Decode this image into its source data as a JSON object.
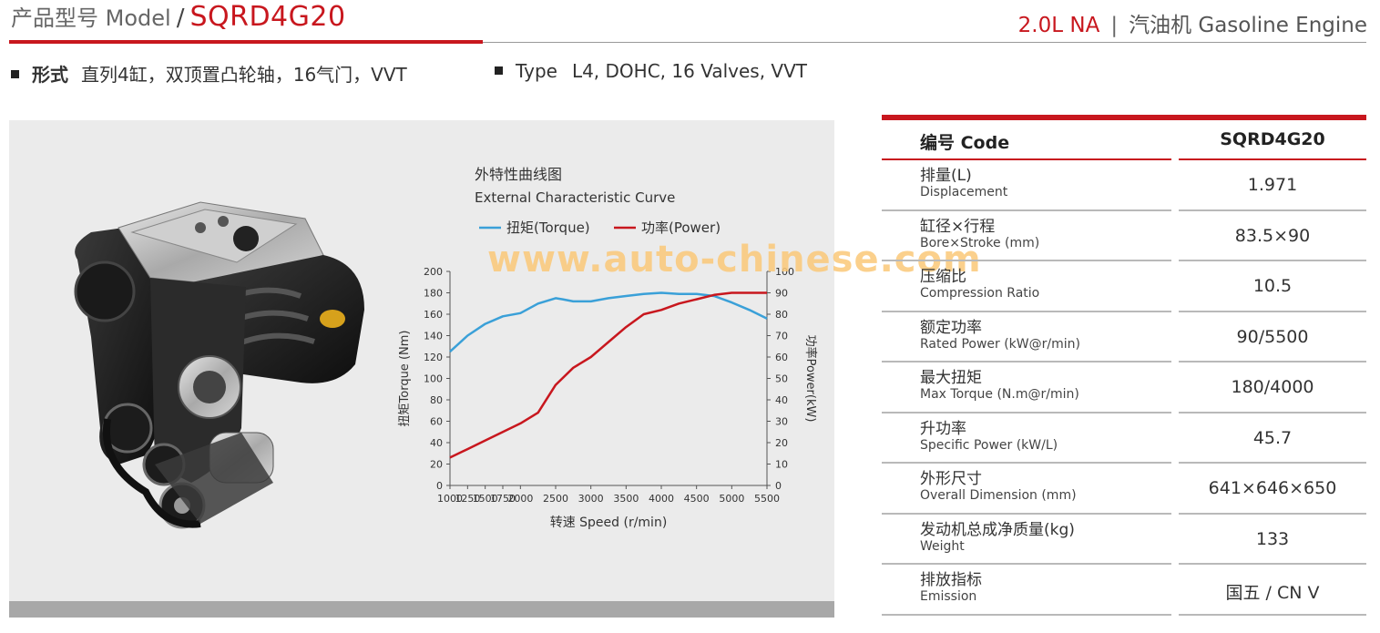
{
  "header": {
    "label": "产品型号 Model",
    "separator": "/",
    "model": "SQRD4G20",
    "displacement": "2.0L NA",
    "divider": "|",
    "engine_type": "汽油机 Gasoline Engine"
  },
  "bullets": {
    "zh_label": "形式",
    "zh_value": "直列4缸，双顶置凸轮轴，16气门，VVT",
    "en_label": "Type",
    "en_value": "L4, DOHC, 16 Valves, VVT"
  },
  "watermark": "www.auto-chinese.com",
  "chart_data": {
    "type": "line",
    "title": "外特性曲线图",
    "subtitle": "External Characteristic Curve",
    "xlabel": "转速 Speed (r/min)",
    "ylabel_left": "扭矩Torque (Nm)",
    "ylabel_right": "功率Power(kW)",
    "x": [
      1000,
      1250,
      1500,
      1750,
      2000,
      2250,
      2500,
      2750,
      3000,
      3250,
      3500,
      3750,
      4000,
      4250,
      4500,
      4750,
      5000,
      5250,
      5500
    ],
    "x_ticks": [
      "1000",
      "1250",
      "1500",
      "1750",
      "2000",
      "2500",
      "3000",
      "3500",
      "4000",
      "4500",
      "5000",
      "5500"
    ],
    "xlim": [
      1000,
      5500
    ],
    "ylim_left": [
      0,
      200
    ],
    "ylim_right": [
      0,
      100
    ],
    "y_ticks_left": [
      "0",
      "20",
      "40",
      "60",
      "80",
      "100",
      "120",
      "140",
      "160",
      "180",
      "200"
    ],
    "y_ticks_right": [
      "0",
      "10",
      "20",
      "30",
      "40",
      "50",
      "60",
      "70",
      "80",
      "90",
      "100"
    ],
    "series": [
      {
        "name": "扭矩(Torque)",
        "axis": "left",
        "color": "#3aa0d8",
        "points": [
          [
            1000,
            125
          ],
          [
            1250,
            140
          ],
          [
            1500,
            151
          ],
          [
            1750,
            158
          ],
          [
            2000,
            161
          ],
          [
            2250,
            170
          ],
          [
            2500,
            175
          ],
          [
            2600,
            174
          ],
          [
            2750,
            172
          ],
          [
            3000,
            172
          ],
          [
            3250,
            175
          ],
          [
            3500,
            177
          ],
          [
            3750,
            179
          ],
          [
            4000,
            180
          ],
          [
            4250,
            179
          ],
          [
            4500,
            179
          ],
          [
            4750,
            177
          ],
          [
            5000,
            171
          ],
          [
            5250,
            164
          ],
          [
            5500,
            156
          ]
        ]
      },
      {
        "name": "功率(Power)",
        "axis": "right",
        "color": "#c8171e",
        "points": [
          [
            1000,
            13
          ],
          [
            1250,
            17
          ],
          [
            1500,
            21
          ],
          [
            1750,
            25
          ],
          [
            2000,
            29
          ],
          [
            2250,
            34
          ],
          [
            2500,
            47
          ],
          [
            2750,
            55
          ],
          [
            3000,
            60
          ],
          [
            3250,
            67
          ],
          [
            3500,
            74
          ],
          [
            3750,
            80
          ],
          [
            4000,
            82
          ],
          [
            4250,
            85
          ],
          [
            4500,
            87
          ],
          [
            4750,
            89
          ],
          [
            5000,
            90
          ],
          [
            5250,
            90
          ],
          [
            5500,
            90
          ]
        ]
      }
    ]
  },
  "specs": {
    "code_label": "编号  Code",
    "code_value": "SQRD4G20",
    "rows": [
      {
        "zh": "排量(L)",
        "en": "Displacement",
        "value": "1.971"
      },
      {
        "zh": "缸径×行程",
        "en": "Bore×Stroke (mm)",
        "value": "83.5×90"
      },
      {
        "zh": "压缩比",
        "en": "Compression  Ratio",
        "value": "10.5"
      },
      {
        "zh": "额定功率",
        "en": "Rated  Power (kW@r/min)",
        "value": "90/5500"
      },
      {
        "zh": "最大扭矩",
        "en": "Max  Torque (N.m@r/min)",
        "value": "180/4000"
      },
      {
        "zh": "升功率",
        "en": "Specific Power (kW/L)",
        "value": "45.7"
      },
      {
        "zh": "外形尺寸",
        "en": "Overall  Dimension (mm)",
        "value": "641×646×650"
      },
      {
        "zh": "发动机总成净质量(kg)",
        "en": "Weight",
        "value": "133"
      },
      {
        "zh": "排放指标",
        "en": "Emission",
        "value": "国五 / CN V"
      }
    ]
  }
}
